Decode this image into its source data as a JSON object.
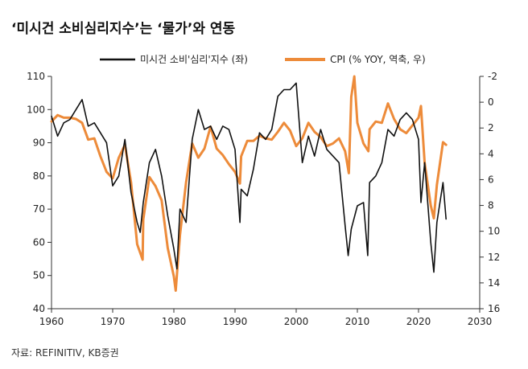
{
  "title": "‘미시건 소비심리지수’는 ‘물가’와 연동",
  "source": "자료: REFINITIV, KB증권",
  "colors": {
    "sentiment": "#111111",
    "cpi": "#ED8B3A",
    "axis": "#333333"
  },
  "chart_data": {
    "type": "line",
    "title": "‘미시건 소비심리지수’는 ‘물가’와 연동",
    "x_ticks": [
      "1960",
      "1970",
      "1980",
      "1990",
      "2000",
      "2010",
      "2020",
      "2030"
    ],
    "xlim": [
      1960,
      2030
    ],
    "y_left_ticks": [
      "40",
      "50",
      "60",
      "70",
      "80",
      "90",
      "100",
      "110"
    ],
    "y_left_lim": [
      40,
      110
    ],
    "y_right_ticks": [
      "-2",
      "0",
      "2",
      "4",
      "6",
      "8",
      "10",
      "12",
      "14",
      "16"
    ],
    "y_right_lim": [
      -2,
      16
    ],
    "y_right_inverted": true,
    "legend_position": "top",
    "series": [
      {
        "name": "미시건 소비'심리'지수 (좌)",
        "axis": "left",
        "color": "#111111",
        "x": [
          1960,
          1961,
          1962,
          1963,
          1964,
          1965,
          1966,
          1967,
          1968,
          1969,
          1970,
          1971,
          1972,
          1973,
          1974,
          1974.5,
          1975,
          1976,
          1977,
          1978,
          1979,
          1980,
          1980.5,
          1981,
          1982,
          1983,
          1984,
          1985,
          1986,
          1987,
          1988,
          1989,
          1990,
          1990.8,
          1991,
          1992,
          1993,
          1994,
          1995,
          1996,
          1997,
          1998,
          1999,
          2000,
          2001,
          2002,
          2003,
          2004,
          2005,
          2006,
          2007,
          2008,
          2008.5,
          2009,
          2010,
          2011,
          2011.7,
          2012,
          2013,
          2014,
          2015,
          2016,
          2017,
          2018,
          2019,
          2020,
          2020.4,
          2021,
          2022,
          2022.5,
          2023,
          2024,
          2024.5
        ],
        "values": [
          98,
          92,
          96,
          97,
          100,
          103,
          95,
          96,
          93,
          90,
          77,
          80,
          91,
          75,
          66,
          63,
          72,
          84,
          88,
          80,
          68,
          58,
          52,
          70,
          66,
          91,
          100,
          94,
          95,
          91,
          95,
          94,
          88,
          66,
          76,
          74,
          82,
          93,
          91,
          94,
          104,
          106,
          106,
          108,
          84,
          92,
          86,
          94,
          88,
          86,
          84,
          65,
          56,
          64,
          71,
          72,
          56,
          78,
          80,
          84,
          94,
          92,
          97,
          99,
          97,
          91,
          72,
          84,
          60,
          51,
          66,
          78,
          67
        ]
      },
      {
        "name": "CPI (% YOY, 역축, 우)",
        "axis": "right",
        "color": "#ED8B3A",
        "x": [
          1960,
          1961,
          1962,
          1963,
          1964,
          1965,
          1966,
          1967,
          1968,
          1969,
          1970,
          1971,
          1972,
          1973,
          1974,
          1974.9,
          1975,
          1976,
          1977,
          1978,
          1979,
          1980,
          1980.3,
          1981,
          1982,
          1983,
          1984,
          1985,
          1986,
          1987,
          1988,
          1989,
          1990,
          1990.8,
          1991,
          1992,
          1993,
          1994,
          1995,
          1996,
          1997,
          1998,
          1999,
          2000,
          2001,
          2002,
          2003,
          2004,
          2005,
          2006,
          2007,
          2008,
          2008.6,
          2009,
          2009.5,
          2010,
          2011,
          2011.8,
          2012,
          2013,
          2014,
          2015,
          2016,
          2017,
          2018,
          2019,
          2020,
          2020.4,
          2021,
          2022,
          2022.5,
          2023,
          2024,
          2024.5
        ],
        "values": [
          1.5,
          1.0,
          1.2,
          1.2,
          1.3,
          1.6,
          2.9,
          2.8,
          4.2,
          5.4,
          5.9,
          4.3,
          3.3,
          6.2,
          11.0,
          12.2,
          9.1,
          5.8,
          6.5,
          7.6,
          11.3,
          13.5,
          14.6,
          10.3,
          6.2,
          3.2,
          4.3,
          3.6,
          1.9,
          3.6,
          4.1,
          4.8,
          5.4,
          6.3,
          4.2,
          3.0,
          3.0,
          2.6,
          2.8,
          2.9,
          2.3,
          1.6,
          2.2,
          3.4,
          2.8,
          1.6,
          2.3,
          2.7,
          3.4,
          3.2,
          2.8,
          3.8,
          5.5,
          -0.4,
          -2.0,
          1.6,
          3.2,
          3.8,
          2.1,
          1.5,
          1.6,
          0.1,
          1.3,
          2.1,
          2.4,
          1.8,
          1.2,
          0.3,
          4.7,
          8.0,
          9.0,
          6.4,
          3.1,
          3.3
        ]
      }
    ]
  }
}
